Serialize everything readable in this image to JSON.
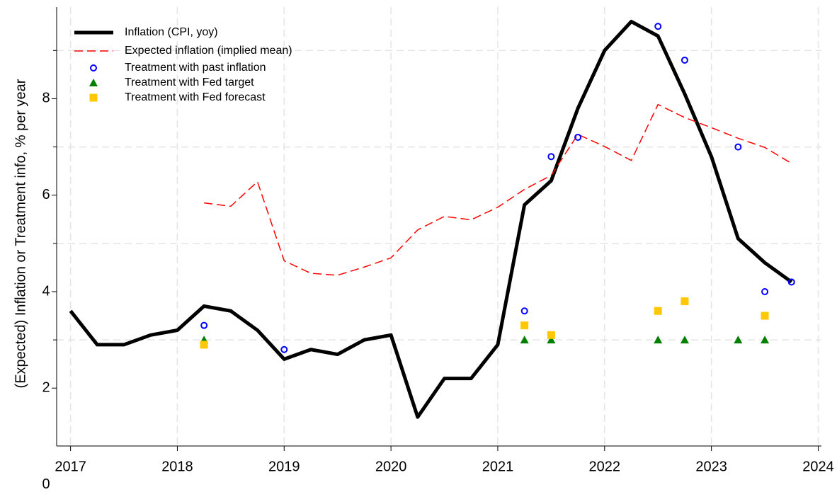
{
  "chart_data": {
    "type": "line",
    "y_label": "(Expected) Inflation or Treatment info, % per year",
    "xlim": [
      2016.87,
      2024.03
    ],
    "xticks": [
      2017,
      2018,
      2019,
      2020,
      2021,
      2022,
      2023,
      2024
    ],
    "ylim": [
      0.8,
      9.9
    ],
    "yticks": [
      0,
      2,
      4,
      6,
      8
    ],
    "ygrid": [
      3,
      5,
      7,
      9
    ],
    "grid": true,
    "legend": "top-left",
    "series": [
      {
        "name": "Inflation (CPI, yoy)",
        "style": "line",
        "color": "#000000",
        "x": [
          2017,
          2017.25,
          2017.5,
          2017.75,
          2018,
          2018.25,
          2018.5,
          2018.75,
          2019,
          2019.25,
          2019.5,
          2019.75,
          2020,
          2020.25,
          2020.5,
          2020.75,
          2021,
          2021.25,
          2021.5,
          2021.75,
          2022,
          2022.25,
          2022.5,
          2022.75,
          2023,
          2023.25,
          2023.5,
          2023.75
        ],
        "values": [
          3.6,
          2.9,
          2.9,
          3.1,
          3.2,
          3.7,
          3.6,
          3.2,
          2.6,
          2.8,
          2.7,
          3.0,
          3.1,
          1.4,
          2.2,
          2.2,
          2.9,
          5.8,
          6.3,
          7.8,
          9.0,
          9.6,
          9.3,
          8.1,
          6.8,
          5.1,
          4.6,
          4.2
        ]
      },
      {
        "name": "Expected inflation (implied mean)",
        "style": "dashed",
        "color": "#ff0000",
        "x": [
          2018.25,
          2018.5,
          2018.75,
          2019,
          2019.25,
          2019.5,
          2019.75,
          2020,
          2020.25,
          2020.5,
          2020.75,
          2021,
          2021.25,
          2021.5,
          2021.75,
          2022,
          2022.25,
          2022.5,
          2022.75,
          2023,
          2023.25,
          2023.5,
          2023.75
        ],
        "values": [
          5.84,
          5.77,
          6.28,
          4.64,
          4.38,
          4.34,
          4.51,
          4.7,
          5.28,
          5.56,
          5.49,
          5.75,
          6.12,
          6.41,
          7.26,
          7.01,
          6.72,
          7.88,
          7.61,
          7.4,
          7.18,
          6.99,
          6.66
        ]
      },
      {
        "name": "Treatment with past inflation",
        "style": "circle",
        "color": "#0000ff",
        "x": [
          2018.25,
          2019,
          2021.25,
          2021.5,
          2021.75,
          2022.5,
          2022.75,
          2023.25,
          2023.5,
          2023.75
        ],
        "values": [
          3.3,
          2.8,
          3.6,
          6.8,
          7.2,
          9.5,
          8.8,
          7.0,
          4.0,
          4.2
        ]
      },
      {
        "name": "Treatment with Fed target",
        "style": "triangle",
        "color": "#008000",
        "x": [
          2018.25,
          2021.25,
          2021.5,
          2022.5,
          2022.75,
          2023.25,
          2023.5
        ],
        "values": [
          3,
          3,
          3,
          3,
          3,
          3,
          3
        ]
      },
      {
        "name": "Treatment with Fed forecast",
        "style": "square",
        "color": "#ffc800",
        "x": [
          2018.25,
          2021.25,
          2021.5,
          2022.5,
          2022.75,
          2023.5
        ],
        "values": [
          2.9,
          3.3,
          3.1,
          3.6,
          3.8,
          3.5
        ]
      }
    ]
  }
}
